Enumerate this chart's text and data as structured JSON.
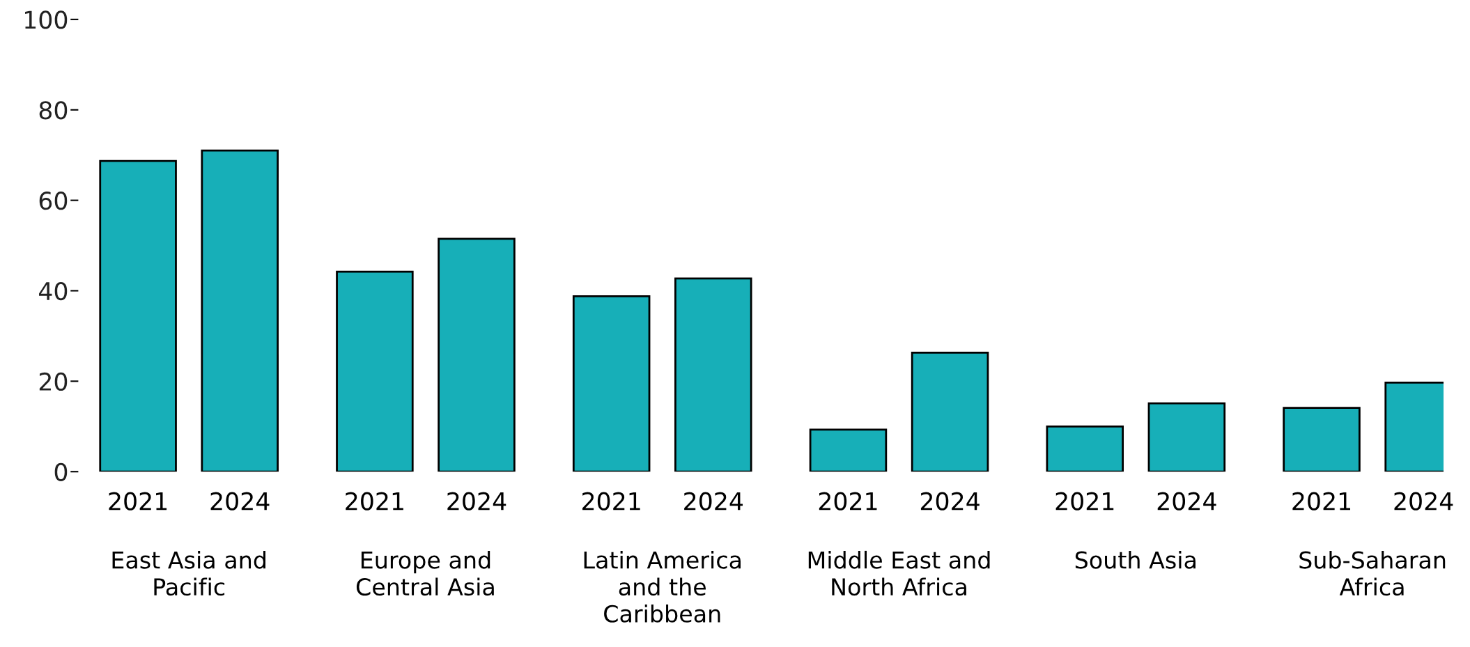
{
  "chart_data": {
    "type": "bar",
    "categories": [
      "East Asia and\nPacific",
      "Europe and\nCentral Asia",
      "Latin America\nand the\nCaribbean",
      "Middle East and\nNorth Africa",
      "South Asia",
      "Sub-Saharan\nAfrica"
    ],
    "series": [
      {
        "name": "2021",
        "color": "#17afb8",
        "values": [
          68.7,
          44.2,
          38.8,
          9.3,
          10.0,
          14.1
        ]
      },
      {
        "name": "2024",
        "color": "#17afb8",
        "values": [
          71.0,
          51.5,
          42.7,
          26.3,
          15.1,
          19.7
        ]
      }
    ],
    "ylim": [
      0,
      100
    ],
    "yticks": [
      0,
      20,
      40,
      60,
      80,
      100
    ],
    "grid": false,
    "legend": false
  }
}
